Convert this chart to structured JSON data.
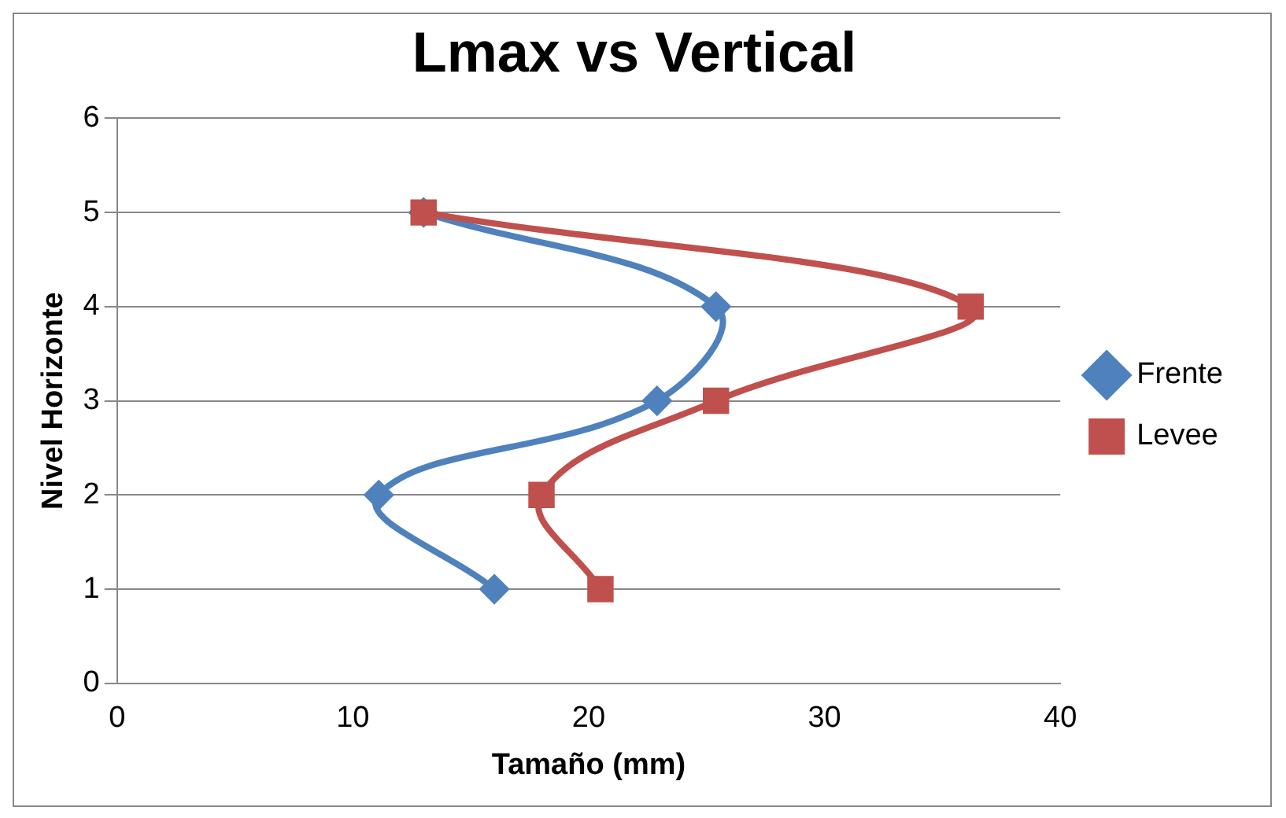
{
  "chart_data": {
    "type": "line",
    "title": "Lmax vs Vertical",
    "xlabel": "Tamaño (mm)",
    "ylabel": "Nivel Horizonte",
    "xlim": [
      0,
      40
    ],
    "xticks": [
      0,
      10,
      20,
      30,
      40
    ],
    "ylim": [
      0,
      6
    ],
    "yticks": [
      0,
      1,
      2,
      3,
      4,
      5,
      6
    ],
    "grid": "y",
    "legend": "right",
    "series": [
      {
        "name": "Frente",
        "color": "#4f81bd",
        "marker": "diamond",
        "x": [
          16,
          11.1,
          22.9,
          25.4,
          13
        ],
        "values": [
          1,
          2,
          3,
          4,
          5
        ]
      },
      {
        "name": "Levee",
        "color": "#c0504d",
        "marker": "square",
        "x": [
          20.5,
          18,
          25.4,
          36.2,
          13
        ],
        "values": [
          1,
          2,
          3,
          4,
          5
        ]
      }
    ]
  }
}
